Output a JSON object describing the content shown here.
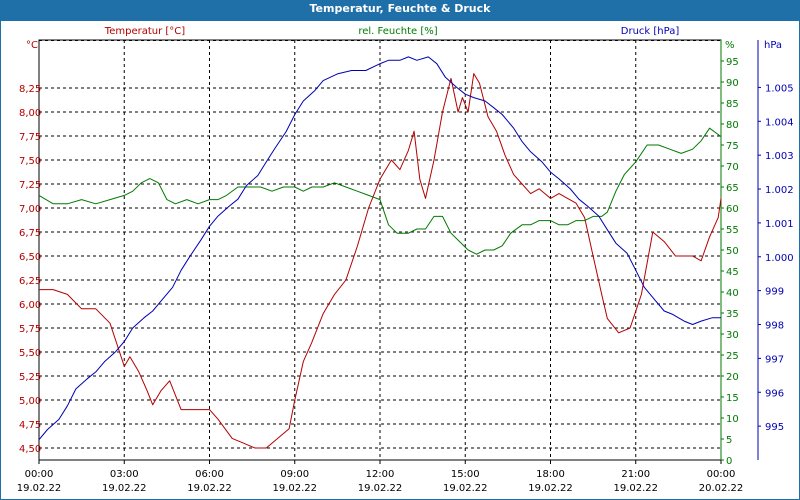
{
  "window": {
    "title": "Temperatur, Feuchte & Druck"
  },
  "colors": {
    "temperature": "#b40000",
    "humidity": "#007a00",
    "pressure": "#0000b4",
    "title_bar": "#1f6fa8",
    "grid": "#000000"
  },
  "chart_data": {
    "type": "line",
    "title": "Temperatur, Feuchte & Druck",
    "grid": true,
    "legend_placement": "top",
    "x_ticks": [
      {
        "time": "00:00",
        "date": "19.02.22"
      },
      {
        "time": "03:00",
        "date": "19.02.22"
      },
      {
        "time": "06:00",
        "date": "19.02.22"
      },
      {
        "time": "09:00",
        "date": "19.02.22"
      },
      {
        "time": "12:00",
        "date": "19.02.22"
      },
      {
        "time": "15:00",
        "date": "19.02.22"
      },
      {
        "time": "18:00",
        "date": "19.02.22"
      },
      {
        "time": "21:00",
        "date": "19.02.22"
      },
      {
        "time": "00:00",
        "date": "20.02.22"
      }
    ],
    "x_unit": "hours",
    "xlim": [
      0,
      24
    ],
    "axes": {
      "temperature": {
        "label": "Temperatur [°C]",
        "unit": "°C",
        "ylim": [
          4.375,
          8.75
        ],
        "ticks": [
          "4,50",
          "4,75",
          "5,00",
          "5,25",
          "5,50",
          "5,75",
          "6,00",
          "6,25",
          "6,50",
          "6,75",
          "7,00",
          "7,25",
          "7,50",
          "7,75",
          "8,00",
          "8,25"
        ],
        "tick_values": [
          4.5,
          4.75,
          5.0,
          5.25,
          5.5,
          5.75,
          6.0,
          6.25,
          6.5,
          6.75,
          7.0,
          7.25,
          7.5,
          7.75,
          8.0,
          8.25
        ]
      },
      "humidity": {
        "label": "rel. Feuchte [%]",
        "unit": "%",
        "ylim": [
          0,
          100
        ],
        "ticks": [
          "0",
          "5",
          "10",
          "15",
          "20",
          "25",
          "30",
          "35",
          "40",
          "45",
          "50",
          "55",
          "60",
          "65",
          "70",
          "75",
          "80",
          "85",
          "90",
          "95"
        ],
        "tick_values": [
          0,
          5,
          10,
          15,
          20,
          25,
          30,
          35,
          40,
          45,
          50,
          55,
          60,
          65,
          70,
          75,
          80,
          85,
          90,
          95
        ]
      },
      "pressure": {
        "label": "Druck [hPa]",
        "unit": "hPa",
        "ylim": [
          994.0,
          1006.4
        ],
        "ticks": [
          "995",
          "996",
          "997",
          "998",
          "999",
          "1.000",
          "1.001",
          "1.002",
          "1.003",
          "1.004",
          "1.005"
        ],
        "tick_values": [
          995,
          996,
          997,
          998,
          999,
          1000,
          1001,
          1002,
          1003,
          1004,
          1005
        ]
      }
    },
    "series": [
      {
        "name": "Temperatur [°C]",
        "axis": "temperature",
        "x": [
          0,
          0.5,
          1,
          1.5,
          2,
          2.5,
          3,
          3.2,
          3.5,
          3.8,
          4,
          4.3,
          4.6,
          5,
          5.5,
          6,
          6.3,
          6.8,
          7.2,
          7.6,
          8,
          8.4,
          8.8,
          9,
          9.3,
          9.6,
          10,
          10.4,
          10.8,
          11.2,
          11.6,
          12,
          12.4,
          12.7,
          13,
          13.2,
          13.4,
          13.6,
          13.9,
          14.2,
          14.5,
          14.75,
          14.9,
          15.1,
          15.3,
          15.5,
          15.8,
          16.1,
          16.4,
          16.7,
          17,
          17.3,
          17.6,
          18,
          18.3,
          18.6,
          18.9,
          19.2,
          19.5,
          19.8,
          20,
          20.4,
          20.8,
          21.2,
          21.6,
          22,
          22.4,
          22.7,
          23,
          23.3,
          23.6,
          23.9,
          24
        ],
        "values": [
          6.15,
          6.15,
          6.1,
          5.95,
          5.95,
          5.8,
          5.35,
          5.45,
          5.3,
          5.1,
          4.95,
          5.1,
          5.2,
          4.9,
          4.9,
          4.9,
          4.8,
          4.6,
          4.55,
          4.5,
          4.5,
          4.6,
          4.7,
          5.0,
          5.4,
          5.6,
          5.9,
          6.1,
          6.25,
          6.6,
          7.0,
          7.3,
          7.5,
          7.4,
          7.6,
          7.8,
          7.3,
          7.1,
          7.5,
          8.0,
          8.35,
          8.0,
          8.15,
          8.0,
          8.4,
          8.3,
          7.95,
          7.8,
          7.55,
          7.35,
          7.25,
          7.15,
          7.2,
          7.1,
          7.15,
          7.1,
          7.05,
          6.9,
          6.5,
          6.1,
          5.85,
          5.7,
          5.75,
          6.1,
          6.75,
          6.65,
          6.5,
          6.5,
          6.5,
          6.45,
          6.7,
          6.9,
          7.1
        ]
      },
      {
        "name": "rel. Feuchte [%]",
        "axis": "humidity",
        "x": [
          0,
          0.5,
          1,
          1.5,
          2,
          2.5,
          3,
          3.3,
          3.6,
          3.9,
          4.2,
          4.5,
          4.8,
          5.2,
          5.6,
          6,
          6.3,
          6.6,
          7,
          7.4,
          7.8,
          8.2,
          8.6,
          9,
          9.3,
          9.6,
          10,
          10.4,
          10.8,
          11.2,
          11.6,
          12,
          12.3,
          12.6,
          13,
          13.3,
          13.6,
          13.9,
          14.2,
          14.5,
          14.8,
          15.1,
          15.4,
          15.7,
          16,
          16.3,
          16.6,
          17,
          17.3,
          17.6,
          18,
          18.3,
          18.6,
          18.9,
          19.2,
          19.5,
          19.8,
          20,
          20.3,
          20.6,
          21,
          21.4,
          21.8,
          22.2,
          22.6,
          23,
          23.3,
          23.6,
          24
        ],
        "values": [
          63,
          61,
          61,
          62,
          61,
          62,
          63,
          64,
          66,
          67,
          66,
          62,
          61,
          62,
          61,
          62,
          62,
          63,
          65,
          65,
          65,
          64,
          65,
          65,
          64,
          65,
          65,
          66,
          65,
          64,
          63,
          62,
          56,
          54,
          54,
          55,
          55,
          58,
          58,
          54,
          52,
          50,
          49,
          50,
          50,
          51,
          54,
          56,
          56,
          57,
          57,
          56,
          56,
          57,
          57,
          58,
          58,
          59,
          64,
          68,
          71,
          75,
          75,
          74,
          73,
          74,
          76,
          79,
          77
        ]
      },
      {
        "name": "Druck [hPa]",
        "axis": "pressure",
        "x": [
          0,
          0.3,
          0.7,
          1,
          1.3,
          1.7,
          2,
          2.3,
          2.7,
          3,
          3.3,
          3.7,
          4,
          4.3,
          4.7,
          5,
          5.3,
          5.7,
          6,
          6.3,
          6.7,
          7,
          7.3,
          7.7,
          8,
          8.3,
          8.7,
          9,
          9.3,
          9.7,
          10,
          10.5,
          11,
          11.5,
          12,
          12.3,
          12.7,
          13,
          13.3,
          13.7,
          14,
          14.3,
          14.7,
          15,
          15.3,
          15.7,
          16,
          16.3,
          16.7,
          17,
          17.3,
          17.7,
          18,
          18.3,
          18.7,
          19,
          19.3,
          19.7,
          20,
          20.3,
          20.7,
          21,
          21.3,
          21.7,
          22,
          22.3,
          22.7,
          23,
          23.3,
          23.7,
          24
        ],
        "values": [
          994.6,
          994.9,
          995.2,
          995.6,
          996.1,
          996.4,
          996.6,
          996.9,
          997.2,
          997.5,
          997.9,
          998.2,
          998.4,
          998.7,
          999.1,
          999.6,
          1000.0,
          1000.5,
          1000.9,
          1001.2,
          1001.5,
          1001.7,
          1002.1,
          1002.4,
          1002.8,
          1003.2,
          1003.7,
          1004.2,
          1004.6,
          1004.9,
          1005.2,
          1005.4,
          1005.5,
          1005.5,
          1005.7,
          1005.8,
          1005.8,
          1005.9,
          1005.8,
          1005.9,
          1005.7,
          1005.3,
          1005.0,
          1004.8,
          1004.7,
          1004.6,
          1004.4,
          1004.2,
          1003.8,
          1003.4,
          1003.1,
          1002.8,
          1002.5,
          1002.3,
          1002.0,
          1001.7,
          1001.5,
          1001.2,
          1000.8,
          1000.4,
          1000.1,
          999.6,
          999.1,
          998.7,
          998.4,
          998.3,
          998.1,
          998.0,
          998.1,
          998.2,
          998.2
        ]
      }
    ]
  }
}
